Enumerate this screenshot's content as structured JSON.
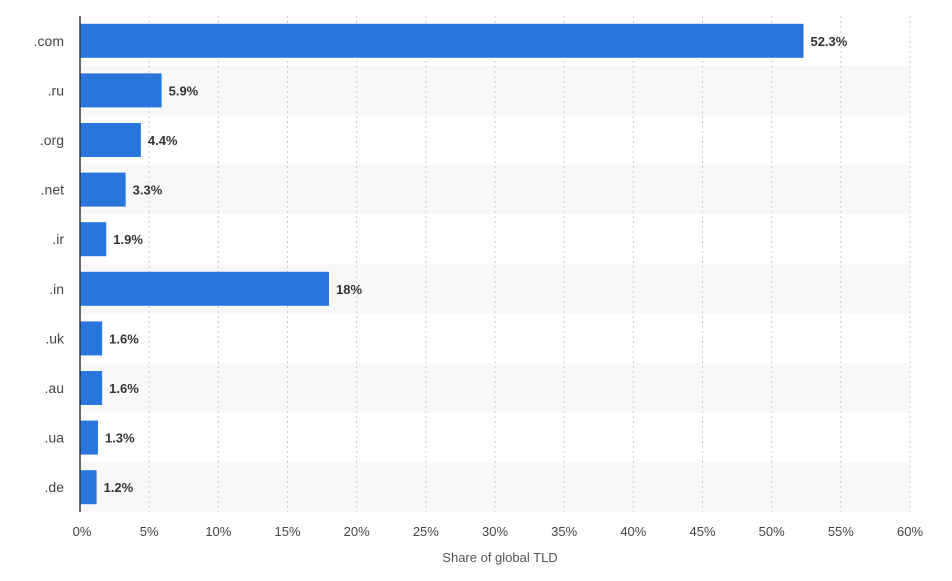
{
  "chart_data": {
    "type": "bar",
    "orientation": "horizontal",
    "categories": [
      ".com",
      ".ru",
      ".org",
      ".net",
      ".ir",
      ".in",
      ".uk",
      ".au",
      ".ua",
      ".de"
    ],
    "values": [
      52.3,
      5.9,
      4.4,
      3.3,
      1.9,
      18,
      1.6,
      1.6,
      1.3,
      1.2
    ],
    "data_labels": [
      "52.3%",
      "5.9%",
      "4.4%",
      "3.3%",
      "1.9%",
      "18%",
      "1.6%",
      "1.6%",
      "1.3%",
      "1.2%"
    ],
    "xlabel": "Share of global TLD",
    "ylabel": "",
    "xlim": [
      0,
      60
    ],
    "x_ticks": [
      0,
      5,
      10,
      15,
      20,
      25,
      30,
      35,
      40,
      45,
      50,
      55,
      60
    ],
    "x_tick_labels": [
      "0%",
      "5%",
      "10%",
      "15%",
      "20%",
      "25%",
      "30%",
      "35%",
      "40%",
      "45%",
      "50%",
      "55%",
      "60%"
    ],
    "grid": "vertical-dotted",
    "legend": "none",
    "bar_color": "#2876dd",
    "alternate_row_color": "#f8f8f8"
  }
}
